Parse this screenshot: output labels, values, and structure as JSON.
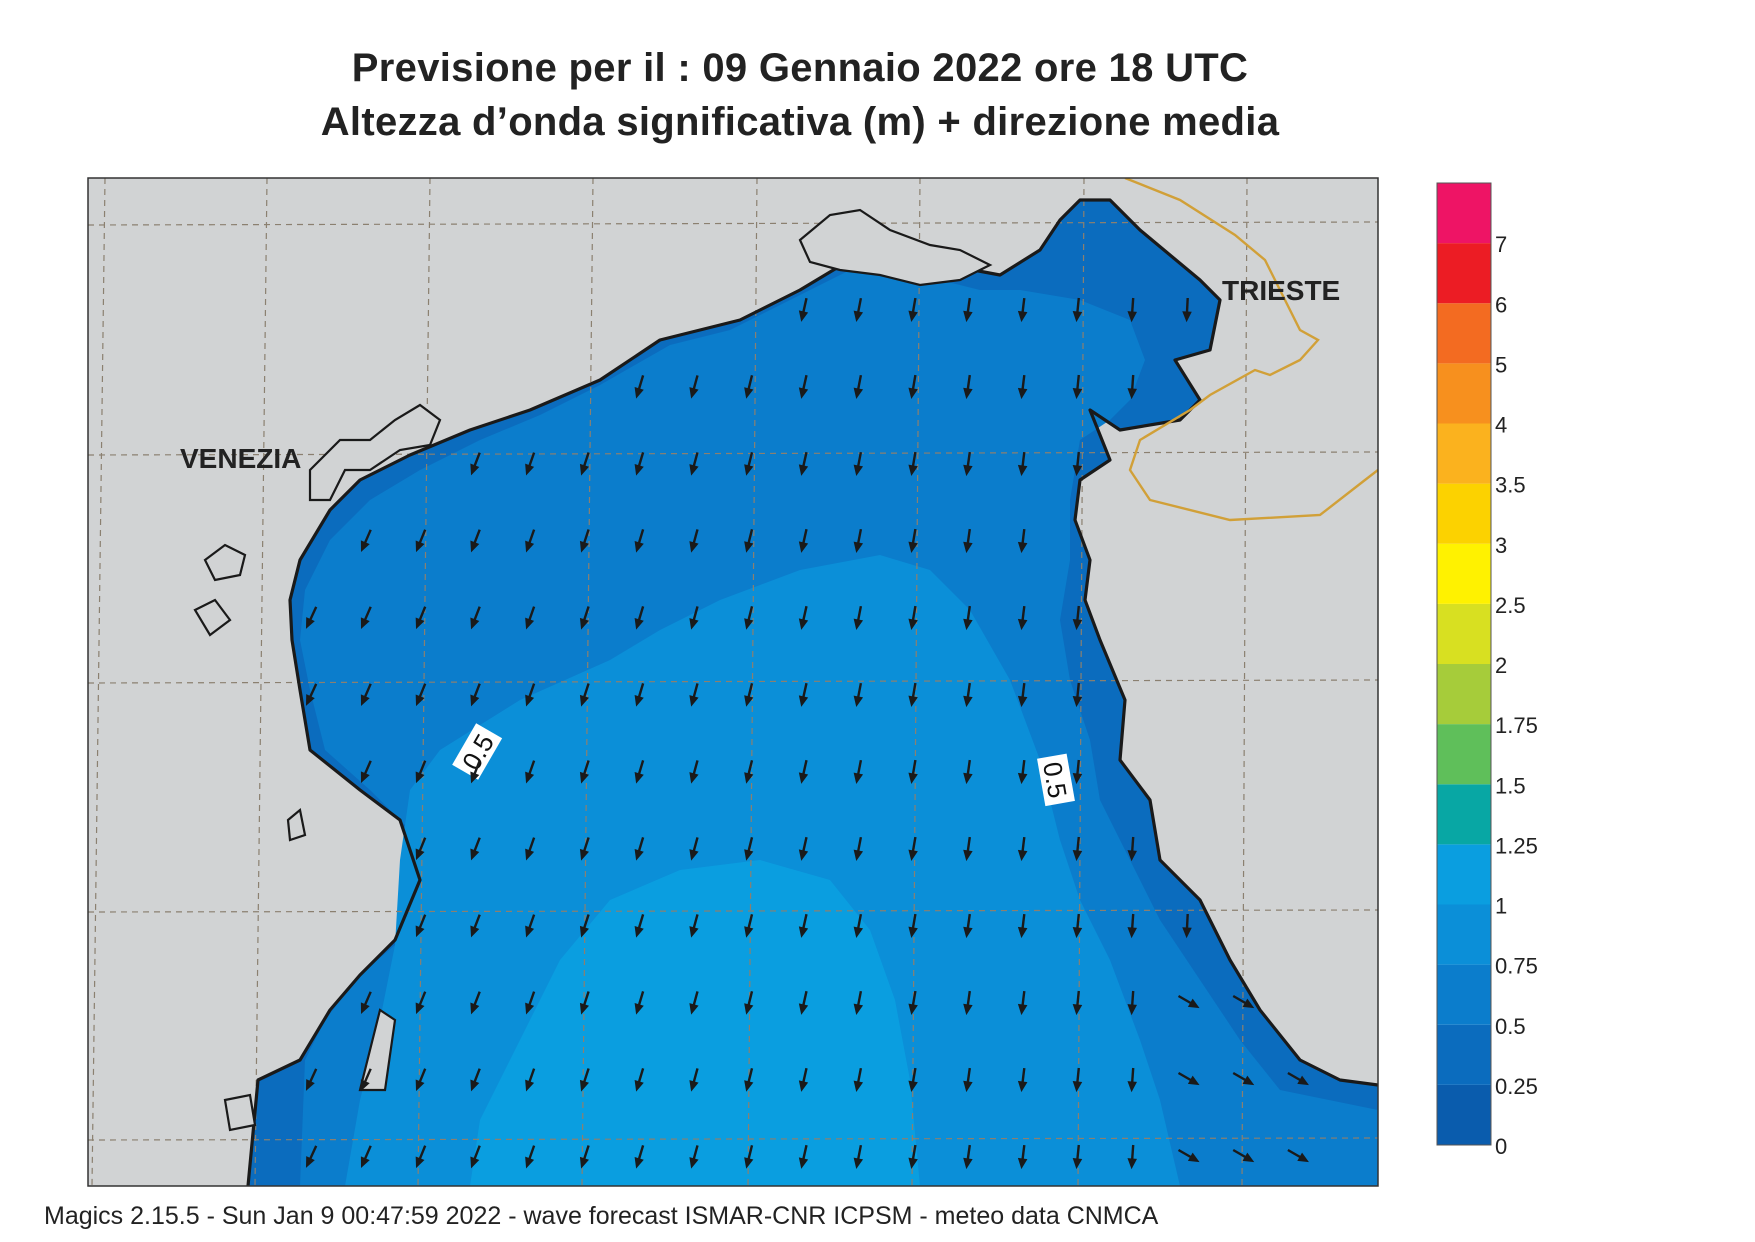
{
  "title": {
    "line1": "Previsione per il  :  09  Gennaio  2022   ore 18 UTC",
    "line2": "Altezza d’onda significativa (m) + direzione media"
  },
  "cities": [
    {
      "name": "VENEZIA"
    },
    {
      "name": "TRIESTE"
    }
  ],
  "contour_labels": [
    "0.5",
    "0.5"
  ],
  "colorbar": {
    "levels": [
      "0",
      "0.25",
      "0.5",
      "0.75",
      "1",
      "1.25",
      "1.5",
      "1.75",
      "2",
      "2.5",
      "3",
      "3.5",
      "4",
      "5",
      "6",
      "7"
    ],
    "colors": [
      "#0a5cad",
      "#0b6cbe",
      "#0b7dcc",
      "#0b8fd8",
      "#0a9ee0",
      "#08a7a4",
      "#5fbf5a",
      "#a6cc3a",
      "#d8e021",
      "#fff200",
      "#fcd200",
      "#fbb21e",
      "#f7901e",
      "#f36b21",
      "#ec1c24",
      "#ee1465"
    ]
  },
  "map": {
    "land_color": "#d1d3d4",
    "border_color": "#d1a038",
    "arrow_direction": "south-southwest"
  },
  "footer": "Magics 2.15.5 - Sun Jan  9 00:47:59 2022 - wave forecast  ISMAR-CNR  ICPSM - meteo data   CNMCA"
}
